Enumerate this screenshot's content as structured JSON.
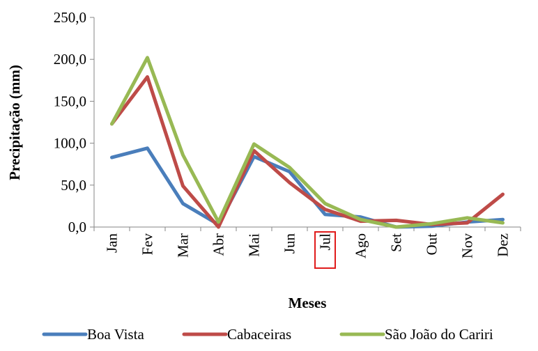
{
  "chart_data": {
    "type": "line",
    "title": "",
    "xlabel": "Meses",
    "ylabel": "Precipitação (mm)",
    "categories": [
      "Jan",
      "Fev",
      "Mar",
      "Abr",
      "Mai",
      "Jun",
      "Jul",
      "Ago",
      "Set",
      "Out",
      "Nov",
      "Dez"
    ],
    "highlighted_category": "Jul",
    "ylim": [
      0,
      250
    ],
    "yticks": [
      "0,0",
      "50,0",
      "100,0",
      "150,0",
      "200,0",
      "250,0"
    ],
    "grid": false,
    "legend_position": "bottom",
    "series": [
      {
        "name": "Boa Vista",
        "color": "#4a7ebb",
        "values": [
          83,
          94,
          28,
          3,
          84,
          66,
          15,
          12,
          0,
          1,
          6,
          9
        ]
      },
      {
        "name": "Cabaceiras",
        "color": "#be4b48",
        "values": [
          123,
          179,
          49,
          0,
          91,
          53,
          21,
          7,
          8,
          3,
          5,
          39
        ]
      },
      {
        "name": "São João do Cariri",
        "color": "#98b954",
        "values": [
          123,
          202,
          86,
          6,
          99,
          71,
          28,
          9,
          0,
          4,
          11,
          5
        ]
      }
    ]
  }
}
